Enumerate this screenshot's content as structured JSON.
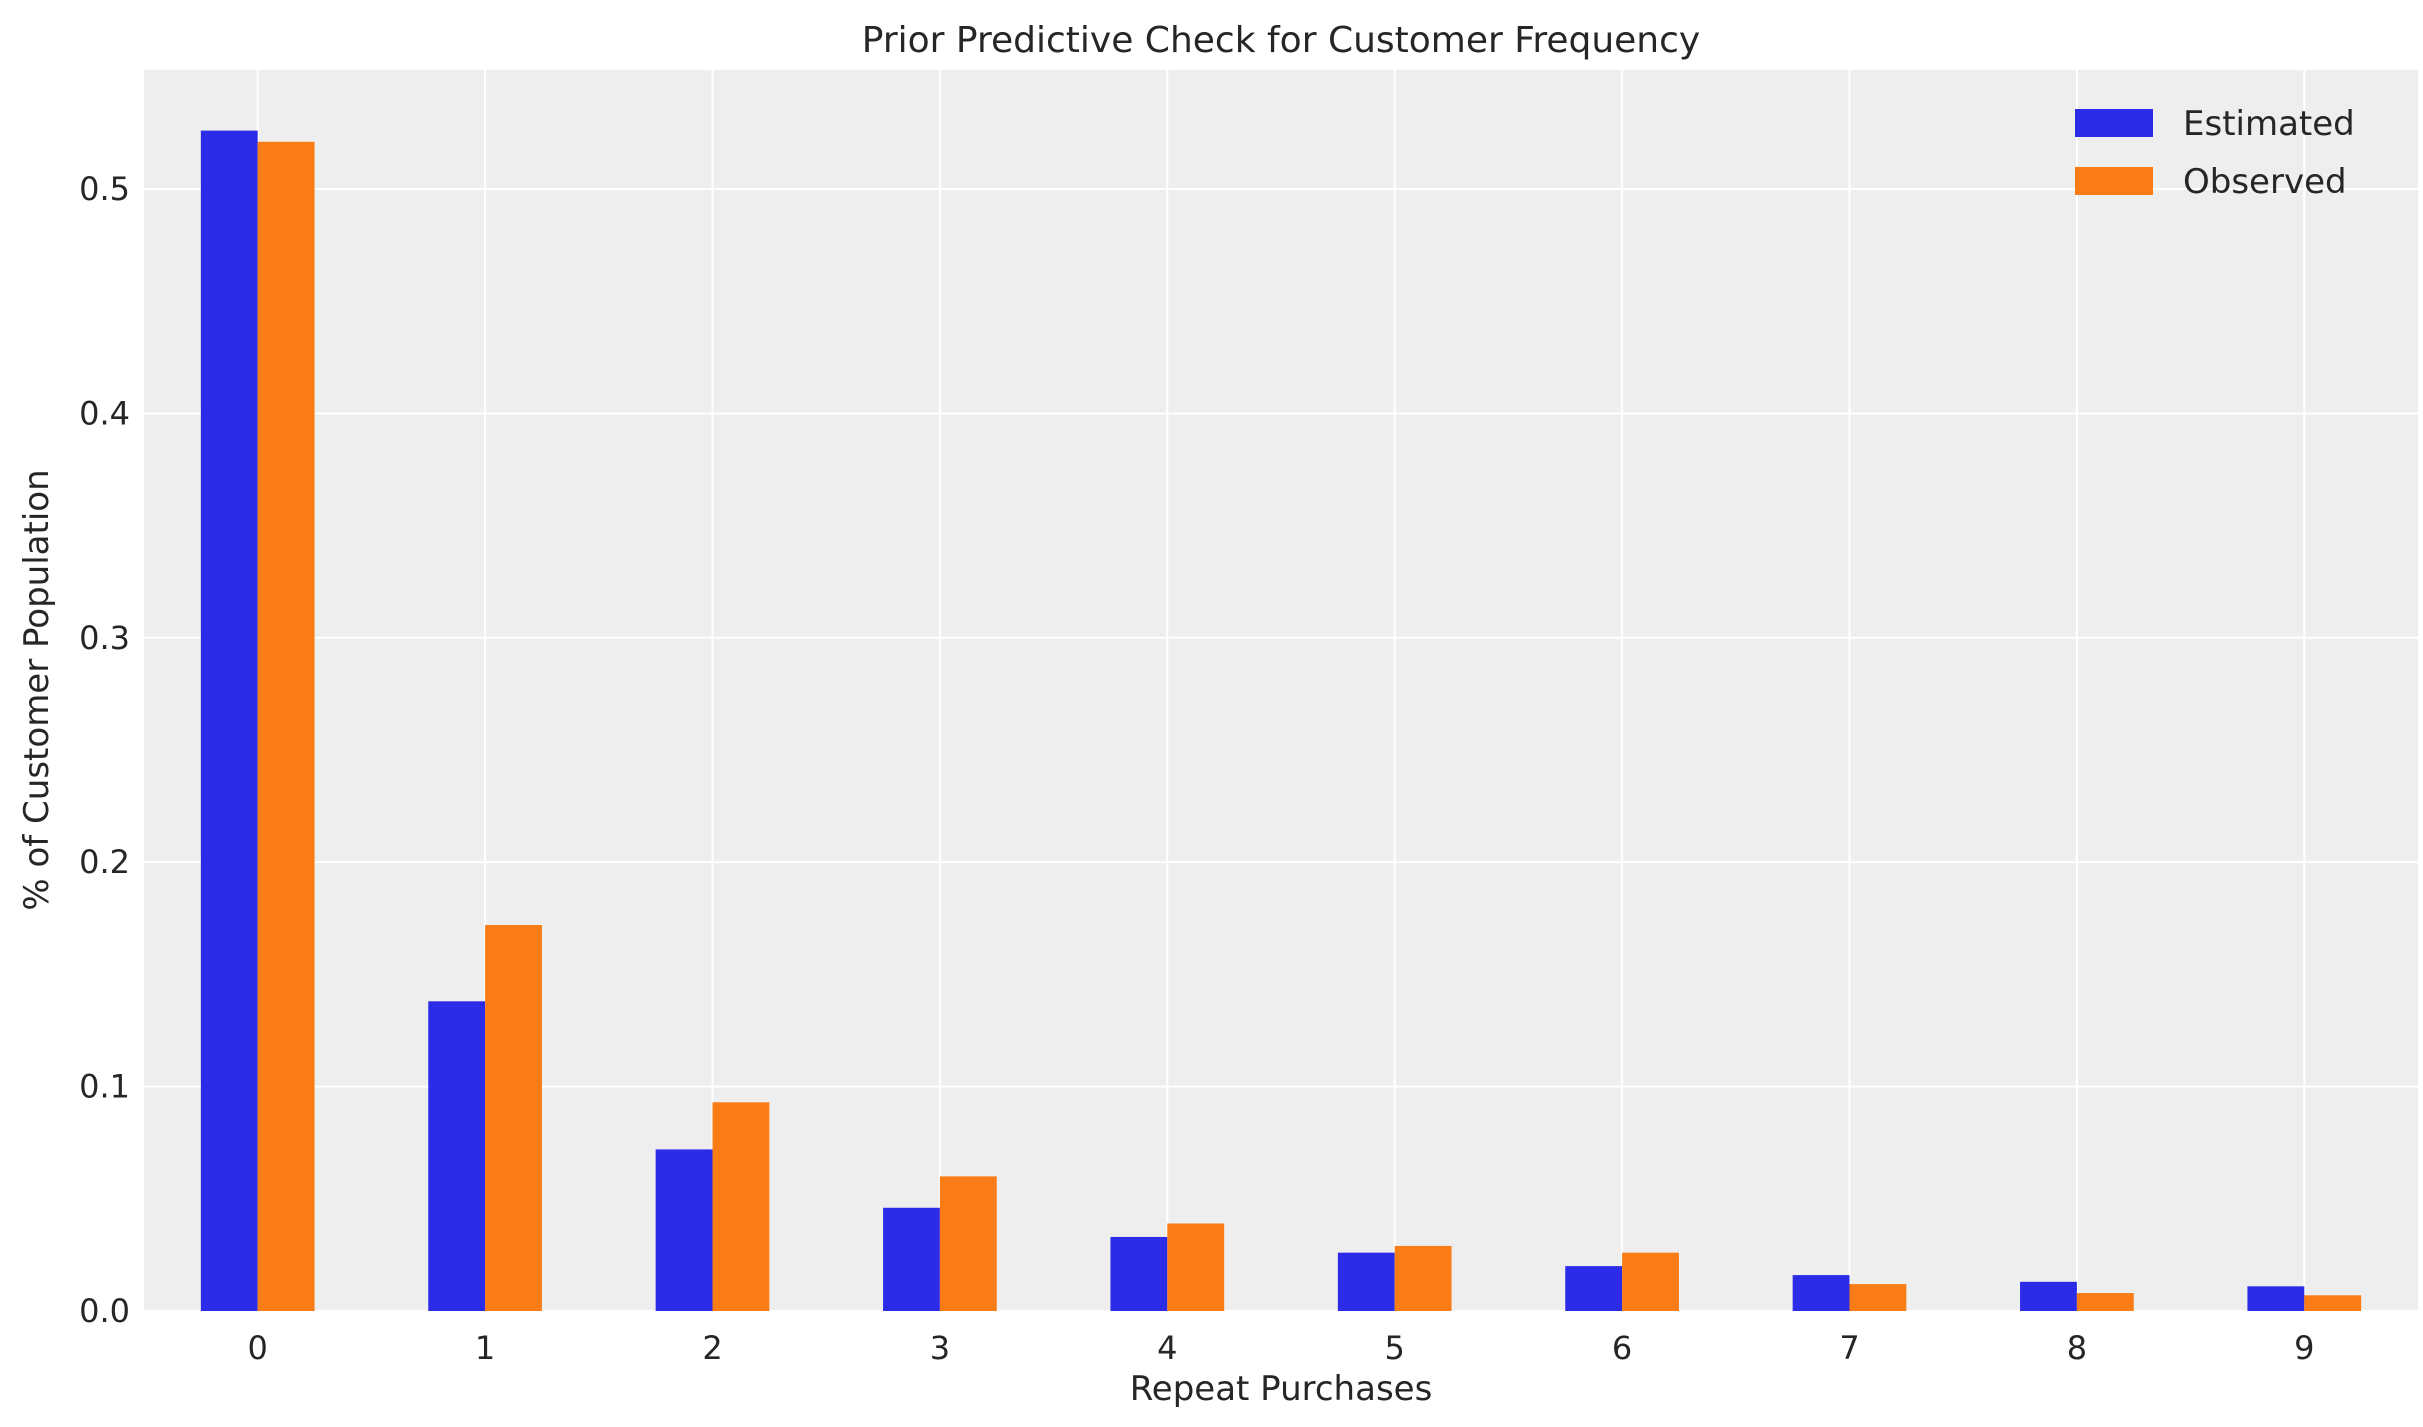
{
  "chart_data": {
    "type": "bar",
    "title": "Prior Predictive Check for Customer Frequency",
    "xlabel": "Repeat Purchases",
    "ylabel": "% of Customer Population",
    "categories": [
      "0",
      "1",
      "2",
      "3",
      "4",
      "5",
      "6",
      "7",
      "8",
      "9"
    ],
    "series": [
      {
        "name": "Estimated",
        "color": "#2c2ce8",
        "values": [
          0.526,
          0.138,
          0.072,
          0.046,
          0.033,
          0.026,
          0.02,
          0.016,
          0.013,
          0.011
        ]
      },
      {
        "name": "Observed",
        "color": "#f97c16",
        "values": [
          0.521,
          0.172,
          0.093,
          0.06,
          0.039,
          0.029,
          0.026,
          0.012,
          0.008,
          0.007
        ]
      }
    ],
    "yticks": [
      "0.0",
      "0.1",
      "0.2",
      "0.3",
      "0.4",
      "0.5"
    ],
    "ylim": [
      0,
      0.553
    ],
    "xlim": [
      -0.5,
      9.5
    ],
    "grid": true,
    "background": "#eeeeee",
    "legend_position": "top-right"
  }
}
